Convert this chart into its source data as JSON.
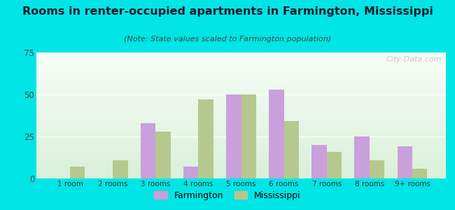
{
  "title": "Rooms in renter-occupied apartments in Farmington, Mississippi",
  "subtitle": "(Note: State values scaled to Farmington population)",
  "categories": [
    "1 room",
    "2 rooms",
    "3 rooms",
    "4 rooms",
    "5 rooms",
    "6 rooms",
    "7 rooms",
    "8 rooms",
    "9+ rooms"
  ],
  "farmington": [
    0,
    0,
    33,
    7,
    50,
    53,
    20,
    25,
    19
  ],
  "mississippi": [
    7,
    11,
    28,
    47,
    50,
    34,
    16,
    11,
    6
  ],
  "farmington_color": "#c9a0dc",
  "mississippi_color": "#b5c98e",
  "background_color": "#00e5e5",
  "ylim": [
    0,
    75
  ],
  "yticks": [
    0,
    25,
    50,
    75
  ],
  "bar_width": 0.35,
  "watermark": "City-Data.com",
  "legend_farmington": "Farmington",
  "legend_mississippi": "Mississippi"
}
